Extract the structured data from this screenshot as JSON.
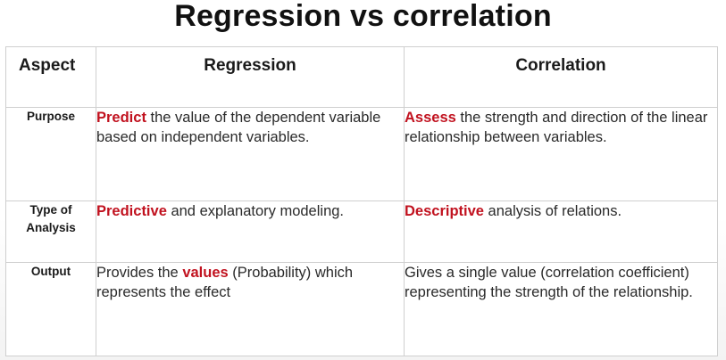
{
  "title": "Regression vs correlation",
  "columns": {
    "aspect": "Aspect",
    "regression": "Regression",
    "correlation": "Correlation"
  },
  "rows": [
    {
      "aspect": "Purpose",
      "regression": {
        "pre": "",
        "highlight": "Predict",
        "post": " the value of the dependent variable based on independent variables."
      },
      "correlation": {
        "pre": "",
        "highlight": "Assess",
        "post": " the strength and direction of the linear relationship between variables."
      }
    },
    {
      "aspect_line1": "Type of",
      "aspect_line2": "Analysis",
      "regression": {
        "pre": "",
        "highlight": "Predictive",
        "post": " and explanatory modeling."
      },
      "correlation": {
        "pre": "",
        "highlight": "Descriptive",
        "post": " analysis of relations."
      }
    },
    {
      "aspect": "Output",
      "regression": {
        "pre": "Provides the ",
        "highlight": "values",
        "post": " (Probability) which represents the effect"
      },
      "correlation": {
        "pre": "Gives a single value (correlation coefficient) representing the strength of the relationship.",
        "highlight": "",
        "post": ""
      }
    }
  ],
  "colors": {
    "highlight": "#c1121f",
    "border": "#cfcfcf"
  }
}
